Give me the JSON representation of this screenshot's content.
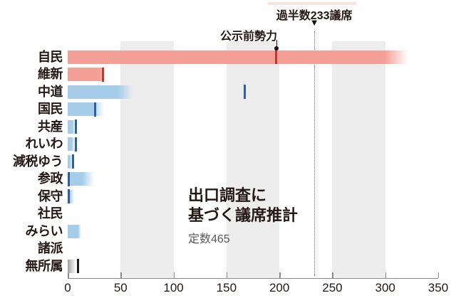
{
  "title": {
    "line1": "出口調査に",
    "line2": "基づく議席推計",
    "subtitle": "定数465"
  },
  "annotations": {
    "majority_label": "過半数233議席",
    "majority_marker": "▼",
    "pre_election_label": "公示前勢力"
  },
  "colors": {
    "red_bar": "#f5a096",
    "red_tick": "#c0392e",
    "blue_bar": "#a5cdea",
    "blue_tick": "#2e5fa5",
    "gray_bar": "#9c9c9c",
    "gray_bar_light": "#d2d2d2",
    "black_tick": "#1a1a1a",
    "stripe": "#ededed",
    "text": "#231815",
    "subtext": "#595757"
  },
  "chart_data": {
    "type": "bar",
    "orientation": "horizontal",
    "title": "出口調査に基づく議席推計",
    "subtitle": "定数465",
    "total_seats": 465,
    "majority_line_value": 233,
    "xlim": [
      0,
      350
    ],
    "x_ticks": [
      0,
      50,
      100,
      150,
      200,
      250,
      300,
      350
    ],
    "stripes": [
      [
        50,
        100
      ],
      [
        150,
        200
      ],
      [
        250,
        300
      ]
    ],
    "value_note": "estimate_solid = solid bar end (projected seats), estimate_max = end of gradient fade (upper range), pre_election = 公示前勢力 tick position",
    "parties": [
      {
        "label": "自民",
        "color": "red",
        "estimate_solid": 300,
        "estimate_max": 322,
        "pre_election": 197
      },
      {
        "label": "維新",
        "color": "red",
        "estimate_solid": 31,
        "estimate_max": 36,
        "pre_election": 33
      },
      {
        "label": "中道",
        "color": "blue",
        "estimate_solid": 48,
        "estimate_max": 61,
        "pre_election": 167
      },
      {
        "label": "国民",
        "color": "blue",
        "estimate_solid": 23,
        "estimate_max": 34,
        "pre_election": 26
      },
      {
        "label": "共産",
        "color": "blue",
        "estimate_solid": 5,
        "estimate_max": 7,
        "pre_election": 8
      },
      {
        "label": "れいわ",
        "color": "blue",
        "estimate_solid": 4,
        "estimate_max": 7,
        "pre_election": 8
      },
      {
        "label": "減税ゆう",
        "color": "blue",
        "estimate_solid": 2,
        "estimate_max": 5,
        "pre_election": 5
      },
      {
        "label": "参政",
        "color": "blue",
        "estimate_solid": 14,
        "estimate_max": 25,
        "pre_election": 1
      },
      {
        "label": "保守",
        "color": "blue",
        "estimate_solid": 2,
        "estimate_max": 6,
        "pre_election": 1
      },
      {
        "label": "社民",
        "color": "blue",
        "estimate_solid": 0,
        "estimate_max": 0,
        "pre_election": null
      },
      {
        "label": "みらい",
        "color": "blue",
        "estimate_solid": 10,
        "estimate_max": 13,
        "pre_election": null
      },
      {
        "label": "諸派",
        "color": "blue",
        "estimate_solid": 0,
        "estimate_max": 0,
        "pre_election": null
      },
      {
        "label": "無所属",
        "color": "gray",
        "estimate_solid": 4,
        "estimate_max": 8,
        "pre_election": 10
      }
    ]
  },
  "layout_values": {
    "pre_election_pointer_x_value": 197
  }
}
